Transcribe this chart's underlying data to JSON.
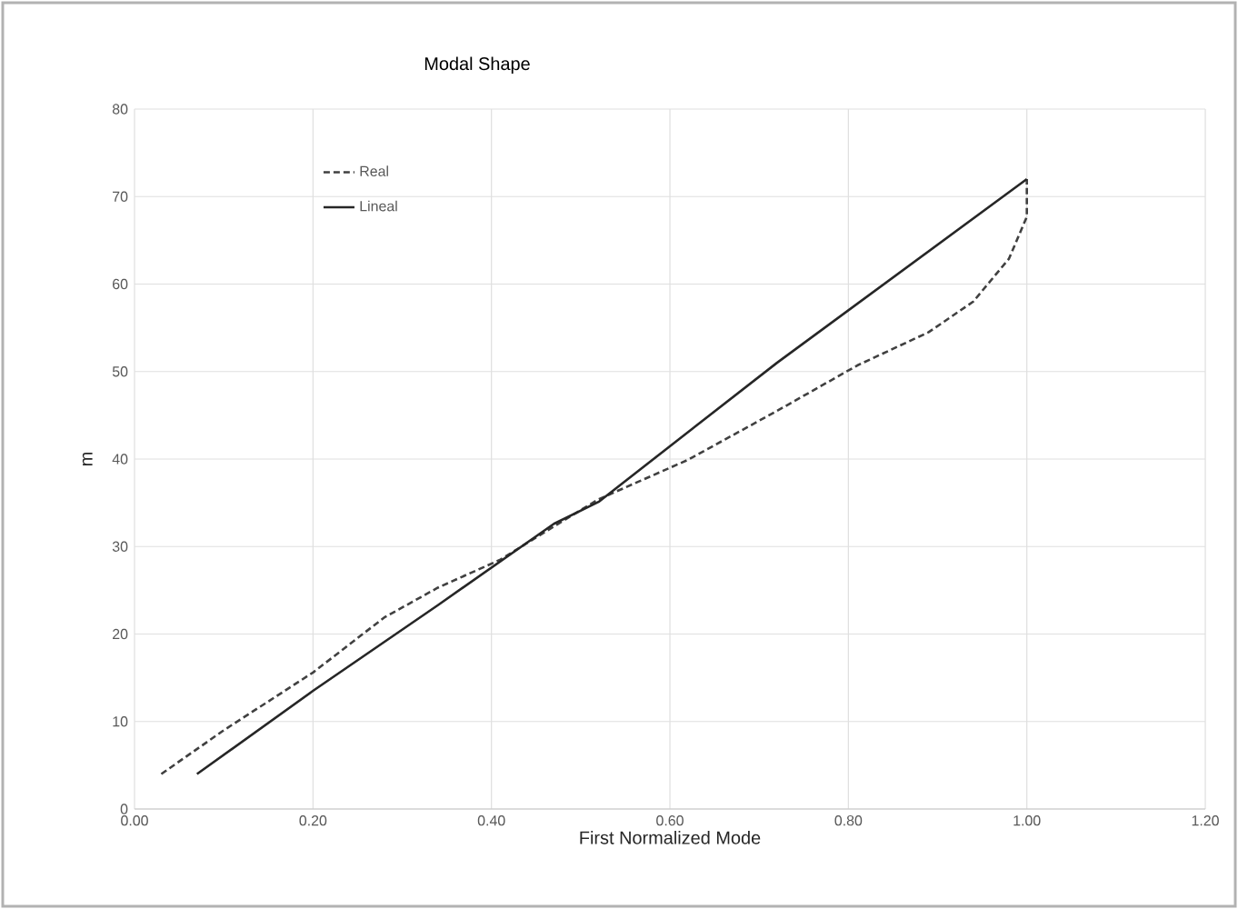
{
  "chart_data": {
    "type": "line",
    "title": "Modal Shape",
    "xlabel": "First Normalized Mode",
    "ylabel": "m",
    "xlim": [
      0,
      1.2
    ],
    "ylim": [
      0,
      80
    ],
    "xticks": [
      {
        "value": 0,
        "label": "0.00"
      },
      {
        "value": 0.2,
        "label": "0.20"
      },
      {
        "value": 0.4,
        "label": "0.40"
      },
      {
        "value": 0.6,
        "label": "0.60"
      },
      {
        "value": 0.8,
        "label": "0.80"
      },
      {
        "value": 1.0,
        "label": "1.00"
      },
      {
        "value": 1.2,
        "label": "1.20"
      }
    ],
    "yticks": [
      0,
      10,
      20,
      30,
      40,
      50,
      60,
      70,
      80
    ],
    "grid": true,
    "legend": "top left",
    "series": [
      {
        "name": "Real",
        "color": "#404040",
        "line_style": "dashed",
        "x": [
          0.03,
          0.1,
          0.2,
          0.28,
          0.34,
          0.41,
          0.47,
          0.52,
          0.62,
          0.72,
          0.81,
          0.89,
          0.94,
          0.98,
          1.0,
          1.0
        ],
        "values": [
          4,
          9,
          15.6,
          21.9,
          25.3,
          28.5,
          32.3,
          35.4,
          39.9,
          45.5,
          50.7,
          54.5,
          58,
          62.9,
          67.7,
          72
        ]
      },
      {
        "name": "Lineal",
        "color": "#262626",
        "line_style": "solid",
        "x": [
          0.07,
          0.2,
          0.34,
          0.47,
          0.52,
          0.72,
          1.0
        ],
        "values": [
          4,
          13.5,
          23.3,
          32.6,
          35.1,
          51,
          72
        ]
      }
    ]
  }
}
